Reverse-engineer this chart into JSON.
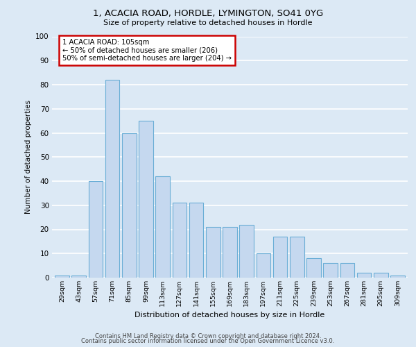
{
  "title1": "1, ACACIA ROAD, HORDLE, LYMINGTON, SO41 0YG",
  "title2": "Size of property relative to detached houses in Hordle",
  "xlabel": "Distribution of detached houses by size in Hordle",
  "ylabel": "Number of detached properties",
  "categories": [
    "29sqm",
    "43sqm",
    "57sqm",
    "71sqm",
    "85sqm",
    "99sqm",
    "113sqm",
    "127sqm",
    "141sqm",
    "155sqm",
    "169sqm",
    "183sqm",
    "197sqm",
    "211sqm",
    "225sqm",
    "239sqm",
    "253sqm",
    "267sqm",
    "281sqm",
    "295sqm",
    "309sqm"
  ],
  "bar_heights": [
    1,
    1,
    40,
    82,
    60,
    65,
    42,
    31,
    31,
    21,
    21,
    22,
    10,
    17,
    17,
    8,
    6,
    6,
    2,
    2,
    1
  ],
  "bar_color": "#c5d8ef",
  "bar_edge_color": "#6aaed6",
  "background_color": "#dce9f5",
  "grid_color": "#ffffff",
  "annotation_text": "1 ACACIA ROAD: 105sqm\n← 50% of detached houses are smaller (206)\n50% of semi-detached houses are larger (204) →",
  "annotation_box_color": "#ffffff",
  "annotation_box_edge": "#cc0000",
  "ylim": [
    0,
    100
  ],
  "yticks": [
    0,
    10,
    20,
    30,
    40,
    50,
    60,
    70,
    80,
    90,
    100
  ],
  "footer1": "Contains HM Land Registry data © Crown copyright and database right 2024.",
  "footer2": "Contains public sector information licensed under the Open Government Licence v3.0."
}
